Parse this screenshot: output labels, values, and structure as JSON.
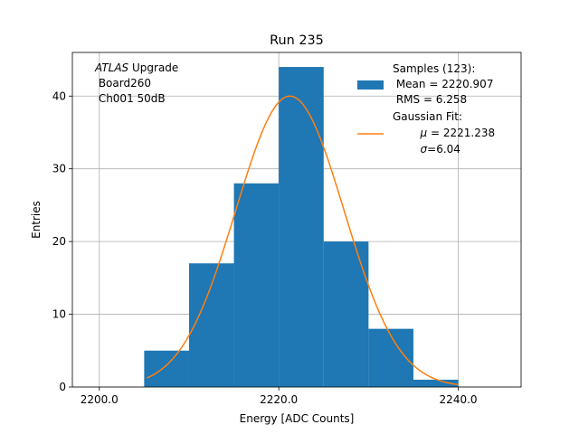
{
  "chart_data": {
    "type": "bar",
    "title": "Run 235",
    "xlabel": "Energy [ADC Counts]",
    "ylabel": "Entries",
    "xlim": [
      2197,
      2247
    ],
    "ylim": [
      0,
      46
    ],
    "grid": true,
    "x_ticks": [
      2200,
      2220,
      2240
    ],
    "x_tick_labels": [
      "2200.0",
      "2220.0",
      "2240.0"
    ],
    "y_ticks": [
      0,
      10,
      20,
      30,
      40
    ],
    "y_tick_labels": [
      "0",
      "10",
      "20",
      "30",
      "40"
    ],
    "bin_edges": [
      2205,
      2210,
      2215,
      2220,
      2225,
      2230,
      2235,
      2240
    ],
    "values": [
      5,
      17,
      28,
      44,
      20,
      8,
      1
    ],
    "bar_color": "#1f77b4",
    "fit": {
      "mu": 2221.238,
      "sigma": 6.04,
      "amplitude": 40,
      "x_range": [
        2205.3,
        2240
      ],
      "color": "#ff7f0e"
    },
    "annotation": {
      "italic": "ATLAS",
      "line1_rest": " Upgrade",
      "line2": " Board260",
      "line3": " Ch001 50dB"
    },
    "legend": {
      "placement": "top-right",
      "samples": {
        "line1": "Samples (123):",
        "line2": " Mean = 2220.907",
        "line3": " RMS = 6.258"
      },
      "fit": {
        "line1": "Gaussian Fit:",
        "line2_symbol": "μ",
        "line2_rest": " = 2221.238",
        "line3_symbol": "σ",
        "line3_rest": "=6.04"
      }
    }
  }
}
